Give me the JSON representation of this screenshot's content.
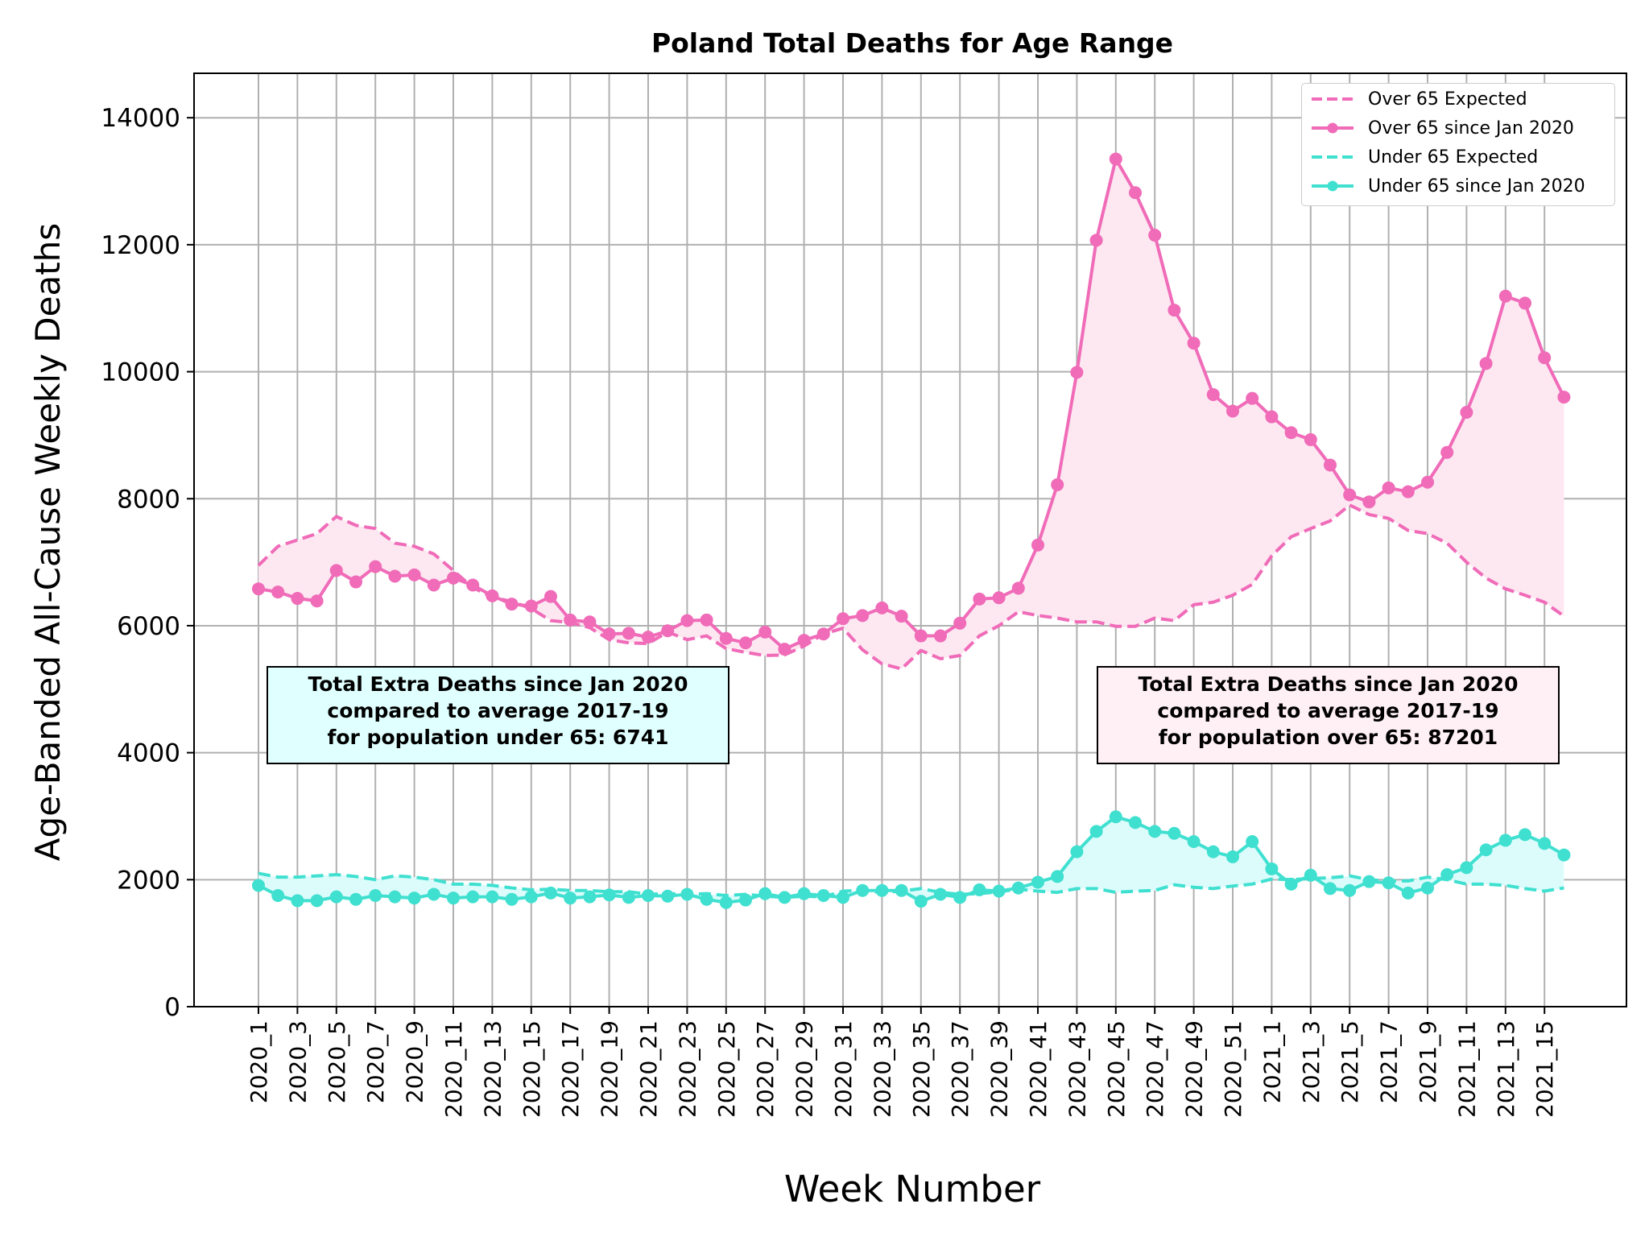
{
  "chart_data": {
    "type": "line",
    "title": "Poland Total Deaths for Age Range",
    "xlabel": "Week Number",
    "ylabel": "Age-Banded All-Cause Weekly Deaths",
    "ylim": [
      0,
      14700
    ],
    "yticks": [
      0,
      2000,
      4000,
      6000,
      8000,
      10000,
      12000,
      14000
    ],
    "grid": true,
    "legend_position": "top-right",
    "categories": [
      "2020_1",
      "2020_2",
      "2020_3",
      "2020_4",
      "2020_5",
      "2020_6",
      "2020_7",
      "2020_8",
      "2020_9",
      "2020_10",
      "2020_11",
      "2020_12",
      "2020_13",
      "2020_14",
      "2020_15",
      "2020_16",
      "2020_17",
      "2020_18",
      "2020_19",
      "2020_20",
      "2020_21",
      "2020_22",
      "2020_23",
      "2020_24",
      "2020_25",
      "2020_26",
      "2020_27",
      "2020_28",
      "2020_29",
      "2020_30",
      "2020_31",
      "2020_32",
      "2020_33",
      "2020_34",
      "2020_35",
      "2020_36",
      "2020_37",
      "2020_38",
      "2020_39",
      "2020_40",
      "2020_41",
      "2020_42",
      "2020_43",
      "2020_44",
      "2020_45",
      "2020_46",
      "2020_47",
      "2020_48",
      "2020_49",
      "2020_50",
      "2020_51",
      "2020_52",
      "2021_1",
      "2021_2",
      "2021_3",
      "2021_4",
      "2021_5",
      "2021_6",
      "2021_7",
      "2021_8",
      "2021_9",
      "2021_10",
      "2021_11",
      "2021_12",
      "2021_13",
      "2021_14",
      "2021_15",
      "2021_16"
    ],
    "tick_labels": [
      "2020_1",
      "2020_3",
      "2020_5",
      "2020_7",
      "2020_9",
      "2020_11",
      "2020_13",
      "2020_15",
      "2020_17",
      "2020_19",
      "2020_21",
      "2020_23",
      "2020_25",
      "2020_27",
      "2020_29",
      "2020_31",
      "2020_33",
      "2020_35",
      "2020_37",
      "2020_39",
      "2020_41",
      "2020_43",
      "2020_45",
      "2020_47",
      "2020_49",
      "2020_51",
      "2021_1",
      "2021_3",
      "2021_5",
      "2021_7",
      "2021_9",
      "2021_11",
      "2021_13",
      "2021_15"
    ],
    "series": [
      {
        "name": "Over 65 Expected",
        "style": "dashed",
        "color": "#f06bb8",
        "values": [
          6950,
          7250,
          7350,
          7450,
          7720,
          7580,
          7530,
          7300,
          7250,
          7130,
          6870,
          6600,
          6450,
          6380,
          6270,
          6080,
          6050,
          5970,
          5780,
          5730,
          5720,
          5900,
          5780,
          5840,
          5640,
          5580,
          5530,
          5540,
          5680,
          5870,
          5960,
          5620,
          5400,
          5320,
          5610,
          5480,
          5530,
          5840,
          6000,
          6220,
          6160,
          6120,
          6060,
          6060,
          5990,
          5990,
          6120,
          6080,
          6330,
          6370,
          6480,
          6650,
          7100,
          7400,
          7530,
          7650,
          7900,
          7750,
          7690,
          7500,
          7450,
          7300,
          7000,
          6750,
          6580,
          6480,
          6370,
          6150
        ]
      },
      {
        "name": "Over 65 since Jan 2020",
        "style": "solid-marker",
        "color": "#f06bb8",
        "values": [
          6580,
          6530,
          6430,
          6390,
          6870,
          6690,
          6930,
          6780,
          6800,
          6640,
          6750,
          6640,
          6470,
          6340,
          6310,
          6460,
          6090,
          6060,
          5870,
          5880,
          5820,
          5920,
          6080,
          6090,
          5800,
          5730,
          5900,
          5630,
          5770,
          5870,
          6110,
          6160,
          6280,
          6150,
          5840,
          5840,
          6040,
          6420,
          6440,
          6590,
          7270,
          8220,
          9990,
          12070,
          13350,
          12820,
          12150,
          10970,
          10450,
          9640,
          9380,
          9580,
          9290,
          9040,
          8930,
          8530,
          8060,
          7950,
          8170,
          8110,
          8260,
          8730,
          9360,
          10130,
          11190,
          11080,
          10220,
          9600
        ]
      },
      {
        "name": "Under 65 Expected",
        "style": "dashed",
        "color": "#40e0d0",
        "values": [
          2100,
          2040,
          2040,
          2060,
          2080,
          2050,
          2000,
          2060,
          2040,
          2000,
          1930,
          1930,
          1910,
          1870,
          1840,
          1850,
          1830,
          1830,
          1810,
          1810,
          1770,
          1780,
          1770,
          1780,
          1750,
          1770,
          1740,
          1720,
          1740,
          1730,
          1820,
          1830,
          1800,
          1820,
          1860,
          1800,
          1770,
          1780,
          1810,
          1850,
          1820,
          1800,
          1860,
          1860,
          1800,
          1820,
          1830,
          1920,
          1880,
          1860,
          1900,
          1930,
          2010,
          2000,
          2020,
          2030,
          2060,
          2000,
          1980,
          1980,
          2040,
          2000,
          1930,
          1930,
          1910,
          1860,
          1820,
          1870
        ]
      },
      {
        "name": "Under 65 since Jan 2020",
        "style": "solid-marker",
        "color": "#40e0d0",
        "values": [
          1910,
          1750,
          1670,
          1670,
          1730,
          1690,
          1750,
          1730,
          1710,
          1770,
          1710,
          1730,
          1730,
          1690,
          1730,
          1790,
          1710,
          1730,
          1760,
          1720,
          1750,
          1740,
          1770,
          1690,
          1640,
          1680,
          1780,
          1720,
          1780,
          1750,
          1720,
          1830,
          1830,
          1830,
          1660,
          1770,
          1720,
          1840,
          1820,
          1870,
          1960,
          2050,
          2440,
          2760,
          2990,
          2900,
          2760,
          2730,
          2600,
          2440,
          2360,
          2600,
          2170,
          1930,
          2070,
          1860,
          1830,
          1970,
          1950,
          1790,
          1870,
          2080,
          2190,
          2470,
          2620,
          2710,
          2570,
          2390
        ]
      }
    ],
    "annotations": [
      {
        "id": "under",
        "fill": "#e0ffff",
        "lines": [
          "Total Extra Deaths since Jan 2020",
          "compared to average 2017-19",
          "for population under 65: 6741"
        ]
      },
      {
        "id": "over",
        "fill": "#fff0f5",
        "lines": [
          "Total Extra Deaths since Jan 2020",
          "compared to average 2017-19",
          "for population over 65: 87201"
        ]
      }
    ]
  }
}
